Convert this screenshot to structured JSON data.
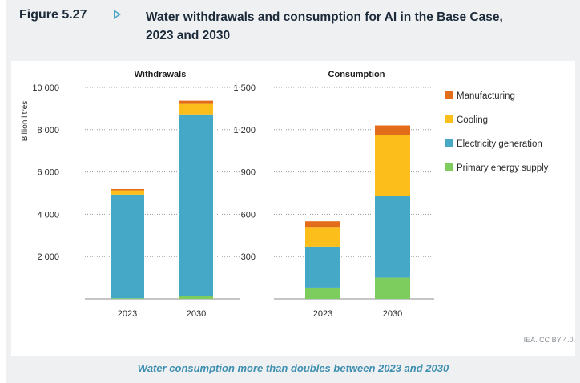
{
  "figure": {
    "label": "Figure 5.27",
    "title": "Water withdrawals and consumption for AI in the Base Case, 2023 and 2030",
    "title_line1": "Water withdrawals and consumption for AI in the Base Case,",
    "title_line2": "2023 and 2030",
    "source": "IEA. CC BY 4.0.",
    "caption": "Water consumption more than doubles between 2023 and 2030"
  },
  "colors": {
    "Manufacturing": "#e36c1b",
    "Cooling": "#fbbe1a",
    "Electricity generation": "#45a8c6",
    "Primary energy supply": "#7ccd5d"
  },
  "legend": [
    "Manufacturing",
    "Cooling",
    "Electricity generation",
    "Primary energy supply"
  ],
  "chart_data": [
    {
      "type": "bar",
      "stacked": true,
      "title": "Withdrawals",
      "ylabel": "Billion litres",
      "categories": [
        "2023",
        "2030"
      ],
      "ylim": [
        0,
        10000
      ],
      "yticks": [
        2000,
        4000,
        6000,
        8000,
        10000
      ],
      "ytick_labels": [
        "2 000",
        "4 000",
        "6 000",
        "8 000",
        "10 000"
      ],
      "series": [
        {
          "name": "Primary energy supply",
          "values": [
            30,
            120
          ]
        },
        {
          "name": "Electricity generation",
          "values": [
            4900,
            8600
          ]
        },
        {
          "name": "Cooling",
          "values": [
            200,
            500
          ]
        },
        {
          "name": "Manufacturing",
          "values": [
            60,
            150
          ]
        }
      ]
    },
    {
      "type": "bar",
      "stacked": true,
      "title": "Consumption",
      "ylabel": "",
      "categories": [
        "2023",
        "2030"
      ],
      "ylim": [
        0,
        1500
      ],
      "yticks": [
        300,
        600,
        900,
        1200,
        1500
      ],
      "ytick_labels": [
        "300",
        "600",
        "900",
        "1 200",
        "1 500"
      ],
      "series": [
        {
          "name": "Primary energy supply",
          "values": [
            80,
            150
          ]
        },
        {
          "name": "Electricity generation",
          "values": [
            290,
            580
          ]
        },
        {
          "name": "Cooling",
          "values": [
            140,
            430
          ]
        },
        {
          "name": "Manufacturing",
          "values": [
            40,
            70
          ]
        }
      ],
      "legend_position": "right"
    }
  ]
}
